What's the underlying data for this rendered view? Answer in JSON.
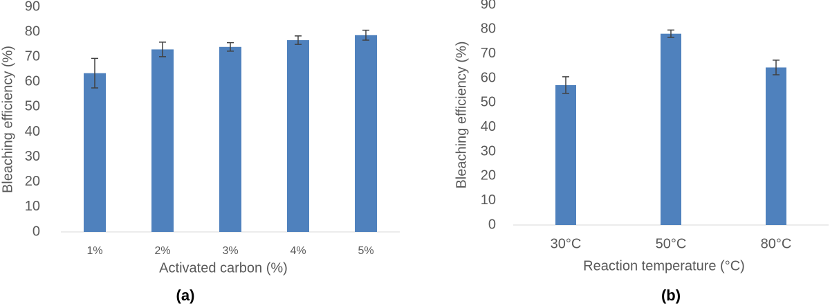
{
  "chart_data": [
    {
      "type": "bar",
      "label": "(a)",
      "x_label": "Activated carbon (%)",
      "y_label": "Bleaching efficiency  (%)",
      "categories": [
        "1%",
        "2%",
        "3%",
        "4%",
        "5%"
      ],
      "series": [
        {
          "color": "#4f81bd",
          "values": [
            63.5,
            73,
            74,
            76.7,
            78.7
          ],
          "errors": [
            5.9,
            2.9,
            1.7,
            1.7,
            2
          ]
        }
      ],
      "ylim": [
        0,
        90
      ],
      "yticks": [
        0,
        10,
        20,
        30,
        40,
        50,
        60,
        70,
        80,
        90
      ]
    },
    {
      "type": "bar",
      "label": "(b)",
      "x_label": "Reaction temperature (°C)",
      "y_label": "Bleaching efficiency  (%)",
      "categories": [
        "30°C",
        "50°C",
        "80°C"
      ],
      "series": [
        {
          "color": "#4f81bd",
          "values": [
            57.2,
            78.2,
            64.4
          ],
          "errors": [
            3.4,
            1.5,
            3
          ]
        }
      ],
      "ylim": [
        0,
        90
      ],
      "yticks": [
        0,
        10,
        20,
        30,
        40,
        50,
        60,
        70,
        80,
        90
      ]
    }
  ]
}
